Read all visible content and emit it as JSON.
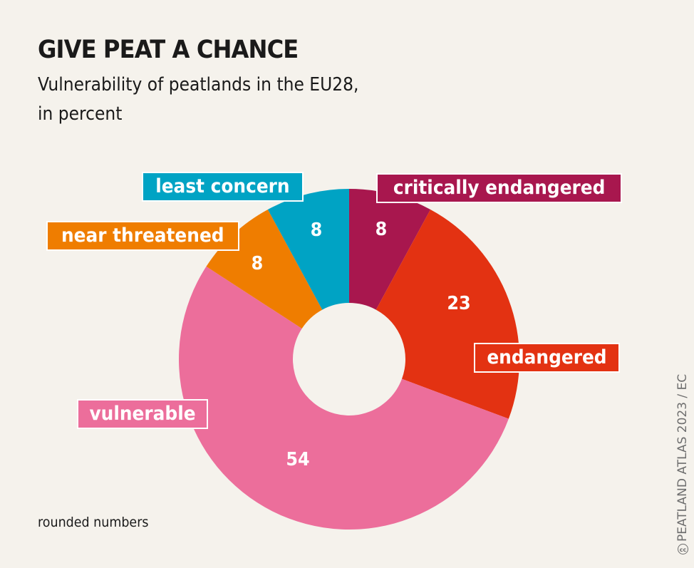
{
  "header": {
    "title": "GIVE PEAT A CHANCE",
    "subtitle_line1": "Vulnerability of peatlands in the EU28,",
    "subtitle_line2": "in percent"
  },
  "footer": {
    "note": "rounded numbers",
    "credit": "PEATLAND ATLAS 2023 / EC",
    "credit_icon": "cc-icon",
    "credit_icon_glyph": "cc"
  },
  "colors": {
    "background": "#f5f2ec",
    "critically_endangered": "#a8174e",
    "endangered": "#e33212",
    "vulnerable": "#ec6e9b",
    "near_threatened": "#ef7d00",
    "least_concern": "#00a3c4"
  },
  "chart_data": {
    "type": "pie",
    "variant": "donut",
    "title": "GIVE PEAT A CHANCE",
    "subtitle": "Vulnerability of peatlands in the EU28, in percent",
    "unit": "percent",
    "note": "rounded numbers",
    "start": "12 o'clock, clockwise",
    "slices": [
      {
        "label": "critically endangered",
        "value": 8,
        "value_label": "8",
        "color": "#a8174e"
      },
      {
        "label": "endangered",
        "value": 23,
        "value_label": "23",
        "color": "#e33212"
      },
      {
        "label": "vulnerable",
        "value": 54,
        "value_label": "54",
        "color": "#ec6e9b"
      },
      {
        "label": "near threatened",
        "value": 8,
        "value_label": "8",
        "color": "#ef7d00"
      },
      {
        "label": "least concern",
        "value": 8,
        "value_label": "8",
        "color": "#00a3c4"
      }
    ]
  }
}
